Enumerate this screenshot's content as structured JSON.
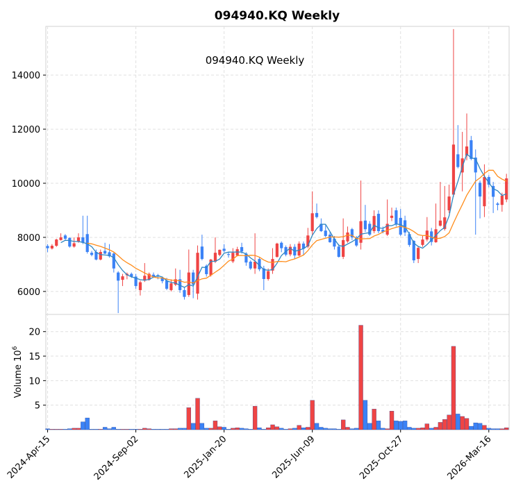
{
  "chart_data": {
    "type": "candlestick",
    "title": "094940.KQ  Weekly",
    "subtitle": "094940.KQ  Weekly",
    "ylabel_volume": "Volume  10",
    "ylabel_volume_exp": "6",
    "colors": {
      "up": "#ef4444",
      "down": "#3b82f6",
      "ma_short": "#2e86c1",
      "ma_long": "#ff8c1a",
      "grid": "#e0e0e0"
    },
    "moving_averages": [
      4,
      10
    ],
    "price_ylim": [
      5150,
      15800
    ],
    "price_yticks": [
      6000,
      8000,
      10000,
      12000,
      14000
    ],
    "volume_ylim": [
      0,
      23.5
    ],
    "volume_yticks": [
      5,
      10,
      15,
      20
    ],
    "xlim": [
      -0.4,
      104.6
    ],
    "xticks": [
      {
        "index": 0,
        "label": "2024-Apr-15"
      },
      {
        "index": 20,
        "label": "2024-Sep-02"
      },
      {
        "index": 40,
        "label": "2025-Jan-20"
      },
      {
        "index": 60,
        "label": "2025-Jun-09"
      },
      {
        "index": 80,
        "label": "2025-Oct-27"
      },
      {
        "index": 100,
        "label": "2026-Mar-16"
      }
    ],
    "ohlc": [
      [
        7680,
        7750,
        7450,
        7600
      ],
      [
        7590,
        7750,
        7550,
        7690
      ],
      [
        7690,
        7950,
        7650,
        7920
      ],
      [
        7900,
        8150,
        7880,
        8000
      ],
      [
        8070,
        8120,
        7900,
        7950
      ],
      [
        7980,
        8000,
        7620,
        7660
      ],
      [
        7660,
        8000,
        7620,
        7780
      ],
      [
        7840,
        8150,
        7800,
        8000
      ],
      [
        8000,
        8800,
        7750,
        7800
      ],
      [
        8120,
        8800,
        7400,
        7460
      ],
      [
        7430,
        7500,
        7300,
        7350
      ],
      [
        7460,
        7550,
        7150,
        7180
      ],
      [
        7180,
        7550,
        7150,
        7460
      ],
      [
        7500,
        7800,
        7380,
        7400
      ],
      [
        7450,
        7750,
        7250,
        7300
      ],
      [
        7400,
        7450,
        6700,
        6850
      ],
      [
        6700,
        6750,
        5200,
        6400
      ],
      [
        6430,
        6650,
        6200,
        6560
      ],
      [
        6600,
        6700,
        6450,
        6650
      ],
      [
        6650,
        6700,
        6500,
        6550
      ],
      [
        6550,
        6650,
        6100,
        6200
      ],
      [
        6050,
        6400,
        5850,
        6340
      ],
      [
        6400,
        7050,
        6350,
        6580
      ],
      [
        6430,
        6700,
        6400,
        6650
      ],
      [
        6620,
        6700,
        6500,
        6550
      ],
      [
        6600,
        6650,
        6450,
        6550
      ],
      [
        6500,
        6550,
        6300,
        6380
      ],
      [
        6400,
        6500,
        6050,
        6100
      ],
      [
        6050,
        6450,
        6000,
        6300
      ],
      [
        6250,
        6850,
        6200,
        6450
      ],
      [
        6450,
        6800,
        5950,
        6050
      ],
      [
        6050,
        6150,
        5700,
        5800
      ],
      [
        5870,
        7550,
        5800,
        6700
      ],
      [
        6700,
        6800,
        5750,
        6250
      ],
      [
        5920,
        7700,
        5700,
        7430
      ],
      [
        7660,
        8100,
        7150,
        7200
      ],
      [
        6950,
        7000,
        6550,
        6640
      ],
      [
        6600,
        7200,
        6550,
        7180
      ],
      [
        7100,
        8000,
        7050,
        7430
      ],
      [
        7350,
        7550,
        7300,
        7540
      ],
      [
        7580,
        7750,
        7450,
        7500
      ],
      [
        7380,
        7450,
        7250,
        7350
      ],
      [
        7110,
        7600,
        7050,
        7430
      ],
      [
        7330,
        7650,
        7300,
        7560
      ],
      [
        7640,
        7800,
        7400,
        7480
      ],
      [
        7400,
        7450,
        6950,
        7070
      ],
      [
        7100,
        7150,
        6800,
        6850
      ],
      [
        6850,
        8150,
        6650,
        7100
      ],
      [
        7200,
        7250,
        6750,
        6820
      ],
      [
        6850,
        6950,
        6050,
        6460
      ],
      [
        6460,
        6850,
        6400,
        6750
      ],
      [
        6770,
        7600,
        6650,
        7200
      ],
      [
        7280,
        7800,
        7250,
        7770
      ],
      [
        7800,
        7850,
        7450,
        7600
      ],
      [
        7640,
        7700,
        7300,
        7360
      ],
      [
        7370,
        7750,
        7300,
        7650
      ],
      [
        7650,
        7750,
        7200,
        7330
      ],
      [
        7330,
        7850,
        7300,
        7770
      ],
      [
        7770,
        7850,
        7350,
        7580
      ],
      [
        7660,
        8350,
        7600,
        8070
      ],
      [
        8230,
        9700,
        8100,
        8890
      ],
      [
        8900,
        9250,
        8700,
        8750
      ],
      [
        8500,
        8700,
        8200,
        8230
      ],
      [
        8250,
        8450,
        8000,
        8050
      ],
      [
        8100,
        8200,
        7800,
        7820
      ],
      [
        7950,
        8050,
        7550,
        7660
      ],
      [
        7660,
        7750,
        7250,
        7280
      ],
      [
        7280,
        8700,
        7200,
        7900
      ],
      [
        7850,
        8400,
        7800,
        8180
      ],
      [
        8300,
        8350,
        7900,
        8000
      ],
      [
        8000,
        8050,
        7650,
        7700
      ],
      [
        7800,
        10100,
        7550,
        8600
      ],
      [
        8620,
        9200,
        8200,
        8300
      ],
      [
        8500,
        8600,
        8050,
        8100
      ],
      [
        8230,
        9000,
        8150,
        8790
      ],
      [
        8870,
        9000,
        8150,
        8230
      ],
      [
        8280,
        8400,
        8150,
        8200
      ],
      [
        8100,
        9400,
        8050,
        8500
      ],
      [
        8720,
        9100,
        8600,
        8800
      ],
      [
        9000,
        9100,
        8400,
        8480
      ],
      [
        8720,
        9050,
        8050,
        8100
      ],
      [
        8630,
        8800,
        8050,
        8180
      ],
      [
        8120,
        8200,
        7650,
        7720
      ],
      [
        7870,
        7900,
        7050,
        7150
      ],
      [
        7200,
        7650,
        7050,
        7610
      ],
      [
        7720,
        8050,
        7650,
        7920
      ],
      [
        7920,
        8750,
        7850,
        8250
      ],
      [
        8220,
        8350,
        7700,
        7830
      ],
      [
        7820,
        9250,
        7800,
        8300
      ],
      [
        8430,
        10050,
        8400,
        8620
      ],
      [
        8310,
        9900,
        8250,
        8740
      ],
      [
        9000,
        9950,
        8900,
        9510
      ],
      [
        9580,
        15700,
        9500,
        11430
      ],
      [
        11070,
        12150,
        10550,
        10600
      ],
      [
        10400,
        11900,
        9700,
        10920
      ],
      [
        11020,
        12580,
        10850,
        11360
      ],
      [
        11590,
        11750,
        10850,
        10900
      ],
      [
        10950,
        11250,
        8100,
        10400
      ],
      [
        10020,
        10100,
        8700,
        9510
      ],
      [
        9150,
        10700,
        8750,
        10230
      ],
      [
        10230,
        10300,
        9850,
        9950
      ],
      [
        9900,
        10050,
        8900,
        9500
      ],
      [
        9250,
        9300,
        9000,
        9200
      ],
      [
        9200,
        9650,
        8950,
        9540
      ],
      [
        9400,
        10350,
        9300,
        10180
      ]
    ],
    "volume_millions": [
      0.2,
      0.1,
      0.1,
      0.1,
      0.1,
      0.2,
      0.3,
      0.3,
      1.6,
      2.4,
      0.1,
      0.1,
      0.1,
      0.5,
      0.2,
      0.5,
      0.1,
      0.1,
      0.1,
      0.1,
      0.1,
      0.1,
      0.3,
      0.2,
      0.1,
      0.1,
      0.1,
      0.1,
      0.2,
      0.2,
      0.3,
      0.3,
      4.5,
      1.3,
      6.4,
      1.3,
      0.3,
      0.3,
      1.8,
      0.6,
      0.5,
      0.1,
      0.3,
      0.4,
      0.3,
      0.2,
      0.1,
      4.8,
      0.4,
      0.1,
      0.4,
      1.0,
      0.6,
      0.3,
      0.1,
      0.2,
      0.3,
      0.9,
      0.4,
      0.5,
      6.0,
      1.3,
      0.5,
      0.3,
      0.2,
      0.2,
      0.1,
      2.0,
      0.5,
      0.2,
      0.3,
      21.3,
      6.0,
      1.3,
      4.2,
      1.8,
      0.3,
      0.2,
      3.8,
      1.8,
      1.7,
      1.8,
      0.5,
      0.3,
      0.3,
      0.4,
      1.2,
      0.3,
      0.5,
      1.5,
      2.1,
      3.0,
      17.0,
      3.2,
      2.7,
      2.3,
      0.7,
      1.4,
      1.3,
      0.9,
      0.3,
      0.2,
      0.2,
      0.2,
      0.4
    ]
  }
}
